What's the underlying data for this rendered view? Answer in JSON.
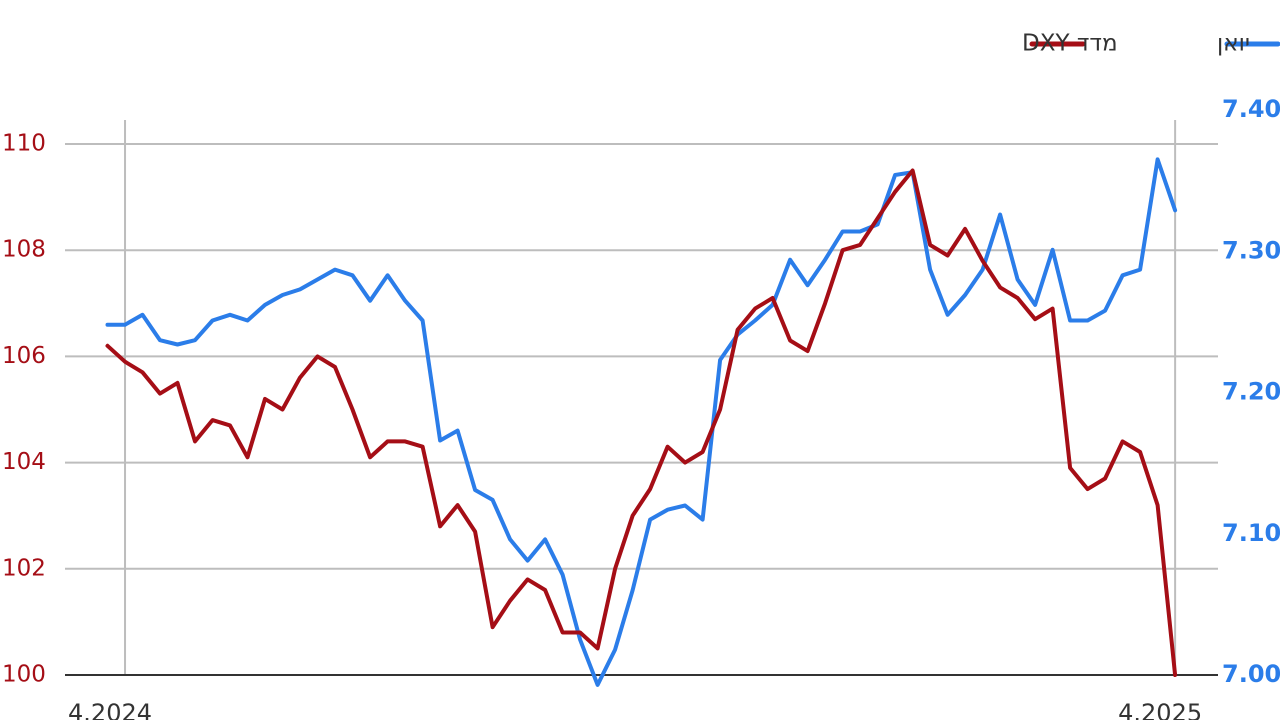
{
  "chart_data": {
    "type": "line",
    "x": [
      -0.2,
      0,
      0.2,
      0.4,
      0.6,
      0.8,
      1,
      1.2,
      1.4,
      1.6,
      1.8,
      2,
      2.2,
      2.4,
      2.6,
      2.8,
      3,
      3.2,
      3.4,
      3.6,
      3.8,
      4,
      4.2,
      4.4,
      4.6,
      4.8,
      5,
      5.2,
      5.4,
      5.6,
      5.8,
      6,
      6.2,
      6.4,
      6.6,
      6.8,
      7,
      7.2,
      7.4,
      7.6,
      7.8,
      8,
      8.2,
      8.4,
      8.6,
      8.8,
      9,
      9.2,
      9.4,
      9.6,
      9.8,
      10,
      10.2,
      10.4,
      10.6,
      10.8,
      11,
      11.2,
      11.4,
      11.6,
      11.8,
      12
    ],
    "xlim": [
      -0.686,
      12.49
    ],
    "xticks": [
      {
        "value": 0,
        "label": "4.2024"
      },
      {
        "value": 12,
        "label": "4.2025"
      }
    ],
    "ylim": [
      100,
      110.64
    ],
    "yticks": [
      100,
      102,
      104,
      106,
      108,
      110
    ],
    "y2lim": [
      7.0,
      7.4
    ],
    "y2ticks": [
      {
        "value": 7.0,
        "label": "7.00"
      },
      {
        "value": 7.1,
        "label": "7.10"
      },
      {
        "value": 7.2,
        "label": "7.20"
      },
      {
        "value": 7.3,
        "label": "7.30"
      },
      {
        "value": 7.4,
        "label": "7.40"
      }
    ],
    "grid": true,
    "legend": "top-right",
    "series": [
      {
        "name": "יואן",
        "color": "#2b7de9",
        "axis": "y2",
        "values": [
          7.248,
          7.248,
          7.255,
          7.237,
          7.234,
          7.237,
          7.251,
          7.255,
          7.251,
          7.262,
          7.269,
          7.273,
          7.28,
          7.287,
          7.283,
          7.265,
          7.283,
          7.265,
          7.251,
          7.166,
          7.173,
          7.131,
          7.124,
          7.096,
          7.081,
          7.096,
          7.071,
          7.025,
          6.993,
          7.018,
          7.06,
          7.11,
          7.117,
          7.12,
          7.11,
          7.223,
          7.241,
          7.251,
          7.262,
          7.294,
          7.276,
          7.294,
          7.314,
          7.314,
          7.319,
          7.354,
          7.356,
          7.287,
          7.255,
          7.269,
          7.287,
          7.326,
          7.28,
          7.262,
          7.301,
          7.251,
          7.251,
          7.258,
          7.283,
          7.287,
          7.365,
          7.329
        ]
      },
      {
        "name": "מדד DXY",
        "color": "#a50e16",
        "values": [
          106.2,
          105.9,
          105.7,
          105.3,
          105.5,
          104.4,
          104.8,
          104.7,
          104.1,
          105.2,
          105.0,
          105.6,
          106.0,
          105.8,
          105.0,
          104.1,
          104.4,
          104.4,
          104.3,
          102.8,
          103.2,
          102.7,
          100.9,
          101.4,
          101.8,
          101.6,
          100.8,
          100.8,
          100.5,
          102.0,
          103.0,
          103.5,
          104.3,
          104.0,
          104.2,
          105.0,
          106.5,
          106.9,
          107.1,
          106.3,
          106.1,
          107.0,
          108.0,
          108.1,
          108.6,
          109.1,
          109.5,
          108.1,
          107.9,
          108.4,
          107.8,
          107.3,
          107.1,
          106.7,
          106.9,
          103.9,
          103.5,
          103.7,
          104.4,
          104.2,
          103.2,
          100.0
        ]
      }
    ]
  }
}
